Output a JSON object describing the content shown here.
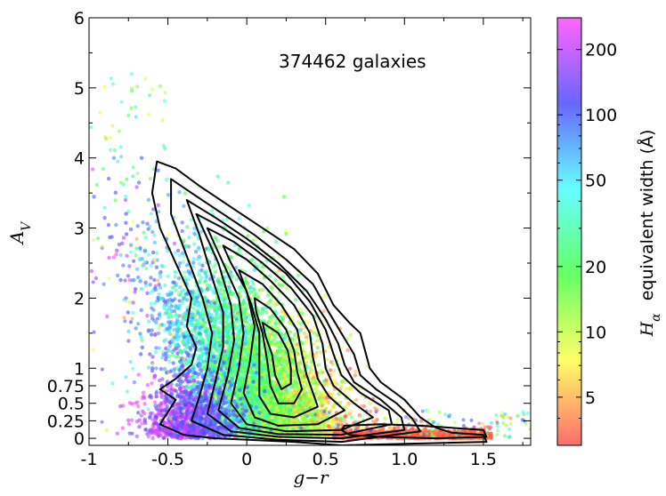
{
  "chart_data": {
    "type": "scatter",
    "title": "",
    "annotation": "374462 galaxies",
    "xlabel": "g−r",
    "ylabel": "A_V",
    "xlim": [
      -1.0,
      1.8
    ],
    "ylim": [
      -0.1,
      6.0
    ],
    "x_ticks": [
      {
        "value": -1.0,
        "label": "-1"
      },
      {
        "value": -0.5,
        "label": "-0.5"
      },
      {
        "value": 0.0,
        "label": "0"
      },
      {
        "value": 0.5,
        "label": "0.5"
      },
      {
        "value": 1.0,
        "label": "1.0"
      },
      {
        "value": 1.5,
        "label": "1.5"
      }
    ],
    "y_ticks": [
      {
        "value": 0,
        "label": "0"
      },
      {
        "value": 0.25,
        "label": "0.25"
      },
      {
        "value": 0.5,
        "label": "0.5"
      },
      {
        "value": 0.75,
        "label": "0.75"
      },
      {
        "value": 1,
        "label": "1"
      },
      {
        "value": 2,
        "label": "2"
      },
      {
        "value": 3,
        "label": "3"
      },
      {
        "value": 4,
        "label": "4"
      },
      {
        "value": 5,
        "label": "5"
      },
      {
        "value": 6,
        "label": "6"
      }
    ],
    "grid": false,
    "colorbar": {
      "label_symbol": "H_α",
      "label_text": "equivalent width (Å)",
      "scale": "log",
      "range": [
        3,
        280
      ],
      "ticks": [
        5,
        10,
        20,
        50,
        100,
        200
      ],
      "colors": [
        "#ff4b4b",
        "#ffff46",
        "#43ff43",
        "#43ffff",
        "#4545ff",
        "#ff43ff"
      ]
    },
    "contour_levels": 9,
    "contours": [
      {
        "points": [
          [
            -0.57,
            3.95
          ],
          [
            -0.45,
            3.85
          ],
          [
            -0.3,
            3.6
          ],
          [
            -0.1,
            3.3
          ],
          [
            0.1,
            3.0
          ],
          [
            0.3,
            2.7
          ],
          [
            0.45,
            2.35
          ],
          [
            0.55,
            1.9
          ],
          [
            0.65,
            1.65
          ],
          [
            0.72,
            1.5
          ],
          [
            0.75,
            1.25
          ],
          [
            0.78,
            1.0
          ],
          [
            0.85,
            0.8
          ],
          [
            1.0,
            0.55
          ],
          [
            1.1,
            0.3
          ],
          [
            1.2,
            0.15
          ],
          [
            1.3,
            0.08
          ],
          [
            1.5,
            0.05
          ],
          [
            1.52,
            -0.05
          ],
          [
            0.6,
            -0.1
          ],
          [
            0.3,
            -0.05
          ],
          [
            -0.2,
            0.0
          ],
          [
            -0.4,
            0.05
          ],
          [
            -0.55,
            0.2
          ],
          [
            -0.45,
            0.55
          ],
          [
            -0.55,
            0.7
          ],
          [
            -0.45,
            0.85
          ],
          [
            -0.35,
            1.05
          ],
          [
            -0.32,
            1.3
          ],
          [
            -0.38,
            1.6
          ],
          [
            -0.35,
            2.0
          ],
          [
            -0.45,
            2.5
          ],
          [
            -0.55,
            3.0
          ],
          [
            -0.6,
            3.5
          ]
        ]
      },
      {
        "points": [
          [
            -0.48,
            3.7
          ],
          [
            -0.35,
            3.5
          ],
          [
            -0.15,
            3.2
          ],
          [
            0.05,
            2.9
          ],
          [
            0.25,
            2.55
          ],
          [
            0.42,
            2.2
          ],
          [
            0.52,
            1.8
          ],
          [
            0.6,
            1.5
          ],
          [
            0.68,
            1.2
          ],
          [
            0.72,
            0.9
          ],
          [
            0.82,
            0.7
          ],
          [
            0.95,
            0.5
          ],
          [
            1.05,
            0.28
          ],
          [
            1.1,
            0.1
          ],
          [
            0.6,
            -0.05
          ],
          [
            0.2,
            -0.02
          ],
          [
            -0.15,
            0.05
          ],
          [
            -0.35,
            0.25
          ],
          [
            -0.3,
            0.6
          ],
          [
            -0.25,
            1.0
          ],
          [
            -0.22,
            1.5
          ],
          [
            -0.28,
            2.0
          ],
          [
            -0.38,
            2.6
          ],
          [
            -0.48,
            3.2
          ]
        ]
      },
      {
        "points": [
          [
            -0.38,
            3.4
          ],
          [
            -0.2,
            3.15
          ],
          [
            0.0,
            2.85
          ],
          [
            0.2,
            2.5
          ],
          [
            0.38,
            2.1
          ],
          [
            0.5,
            1.7
          ],
          [
            0.58,
            1.35
          ],
          [
            0.62,
            1.05
          ],
          [
            0.68,
            0.8
          ],
          [
            0.85,
            0.55
          ],
          [
            0.98,
            0.3
          ],
          [
            1.0,
            0.12
          ],
          [
            0.6,
            0.0
          ],
          [
            0.2,
            0.02
          ],
          [
            -0.1,
            0.1
          ],
          [
            -0.25,
            0.35
          ],
          [
            -0.2,
            0.8
          ],
          [
            -0.15,
            1.3
          ],
          [
            -0.15,
            1.8
          ],
          [
            -0.22,
            2.3
          ],
          [
            -0.3,
            2.9
          ]
        ]
      },
      {
        "points": [
          [
            -0.32,
            3.2
          ],
          [
            -0.15,
            3.0
          ],
          [
            0.05,
            2.7
          ],
          [
            0.25,
            2.35
          ],
          [
            0.4,
            1.95
          ],
          [
            0.5,
            1.55
          ],
          [
            0.55,
            1.2
          ],
          [
            0.6,
            0.9
          ],
          [
            0.72,
            0.65
          ],
          [
            0.9,
            0.4
          ],
          [
            0.92,
            0.2
          ],
          [
            0.6,
            0.05
          ],
          [
            0.2,
            0.06
          ],
          [
            -0.05,
            0.15
          ],
          [
            -0.18,
            0.4
          ],
          [
            -0.12,
            0.9
          ],
          [
            -0.08,
            1.4
          ],
          [
            -0.1,
            1.9
          ],
          [
            -0.18,
            2.5
          ]
        ]
      },
      {
        "points": [
          [
            -0.25,
            3.0
          ],
          [
            -0.08,
            2.8
          ],
          [
            0.1,
            2.5
          ],
          [
            0.28,
            2.15
          ],
          [
            0.42,
            1.75
          ],
          [
            0.48,
            1.35
          ],
          [
            0.5,
            1.0
          ],
          [
            0.55,
            0.75
          ],
          [
            0.68,
            0.5
          ],
          [
            0.8,
            0.3
          ],
          [
            0.6,
            0.12
          ],
          [
            0.25,
            0.1
          ],
          [
            0.0,
            0.2
          ],
          [
            -0.1,
            0.5
          ],
          [
            -0.05,
            1.0
          ],
          [
            -0.02,
            1.5
          ],
          [
            -0.05,
            2.0
          ],
          [
            -0.15,
            2.5
          ]
        ]
      },
      {
        "points": [
          [
            -0.15,
            2.75
          ],
          [
            0.0,
            2.55
          ],
          [
            0.15,
            2.25
          ],
          [
            0.3,
            1.9
          ],
          [
            0.4,
            1.5
          ],
          [
            0.42,
            1.15
          ],
          [
            0.45,
            0.85
          ],
          [
            0.52,
            0.6
          ],
          [
            0.62,
            0.4
          ],
          [
            0.45,
            0.2
          ],
          [
            0.2,
            0.18
          ],
          [
            0.05,
            0.3
          ],
          [
            -0.02,
            0.65
          ],
          [
            0.02,
            1.1
          ],
          [
            0.05,
            1.6
          ],
          [
            0.0,
            2.1
          ],
          [
            -0.1,
            2.5
          ]
        ]
      },
      {
        "points": [
          [
            -0.05,
            2.4
          ],
          [
            0.1,
            2.2
          ],
          [
            0.22,
            1.9
          ],
          [
            0.32,
            1.55
          ],
          [
            0.35,
            1.2
          ],
          [
            0.38,
            0.9
          ],
          [
            0.42,
            0.65
          ],
          [
            0.45,
            0.45
          ],
          [
            0.3,
            0.3
          ],
          [
            0.15,
            0.35
          ],
          [
            0.08,
            0.6
          ],
          [
            0.08,
            1.0
          ],
          [
            0.08,
            1.5
          ],
          [
            0.03,
            1.9
          ]
        ]
      },
      {
        "points": [
          [
            0.05,
            2.0
          ],
          [
            0.15,
            1.85
          ],
          [
            0.25,
            1.55
          ],
          [
            0.3,
            1.25
          ],
          [
            0.32,
            0.95
          ],
          [
            0.35,
            0.7
          ],
          [
            0.3,
            0.5
          ],
          [
            0.2,
            0.5
          ],
          [
            0.15,
            0.75
          ],
          [
            0.13,
            1.1
          ],
          [
            0.1,
            1.5
          ],
          [
            0.06,
            1.8
          ]
        ]
      },
      {
        "points": [
          [
            0.1,
            1.65
          ],
          [
            0.2,
            1.5
          ],
          [
            0.26,
            1.25
          ],
          [
            0.28,
            1.0
          ],
          [
            0.28,
            0.78
          ],
          [
            0.22,
            0.7
          ],
          [
            0.18,
            0.9
          ],
          [
            0.16,
            1.2
          ],
          [
            0.12,
            1.45
          ]
        ]
      },
      {
        "points": [
          [
            0.62,
            0.18
          ],
          [
            0.85,
            0.2
          ],
          [
            1.1,
            0.18
          ],
          [
            1.5,
            0.12
          ],
          [
            1.52,
            0.02
          ],
          [
            1.2,
            0.0
          ],
          [
            0.85,
            0.02
          ],
          [
            0.65,
            0.05
          ],
          [
            0.6,
            0.12
          ]
        ]
      }
    ]
  }
}
